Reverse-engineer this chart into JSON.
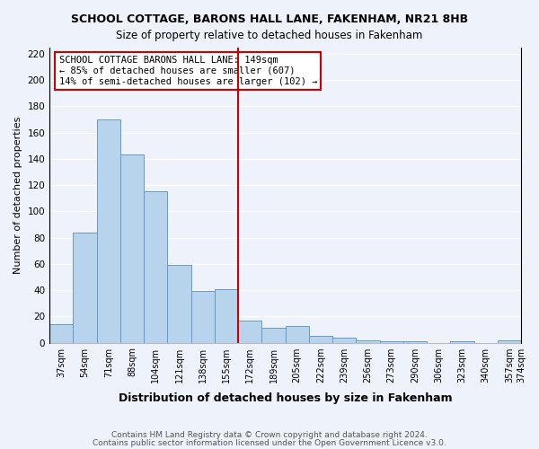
{
  "title": "SCHOOL COTTAGE, BARONS HALL LANE, FAKENHAM, NR21 8HB",
  "subtitle": "Size of property relative to detached houses in Fakenham",
  "xlabel": "Distribution of detached houses by size in Fakenham",
  "ylabel": "Number of detached properties",
  "bar_values": [
    14,
    84,
    170,
    143,
    115,
    59,
    39,
    41,
    17,
    11,
    13,
    5,
    4,
    2,
    1,
    1,
    0,
    1,
    0,
    2
  ],
  "bar_labels": [
    "37sqm",
    "54sqm",
    "71sqm",
    "88sqm",
    "104sqm",
    "121sqm",
    "138sqm",
    "155sqm",
    "172sqm",
    "189sqm",
    "205sqm",
    "222sqm",
    "239sqm",
    "256sqm",
    "273sqm",
    "290sqm",
    "306sqm",
    "323sqm",
    "340sqm",
    "357sqm",
    "374sqm"
  ],
  "bar_color": "#b8d4ec",
  "bar_edge_color": "#6699cc",
  "vline_x": 7.5,
  "vline_color": "#cc0000",
  "ylim": [
    0,
    225
  ],
  "yticks": [
    0,
    20,
    40,
    60,
    80,
    100,
    120,
    140,
    160,
    180,
    200,
    220
  ],
  "annotation_title": "SCHOOL COTTAGE BARONS HALL LANE: 149sqm",
  "annotation_line1": "← 85% of detached houses are smaller (607)",
  "annotation_line2": "14% of semi-detached houses are larger (102) →",
  "annotation_box_color": "#ffffff",
  "annotation_box_edge": "#cc0000",
  "footer1": "Contains HM Land Registry data © Crown copyright and database right 2024.",
  "footer2": "Contains public sector information licensed under the Open Government Licence v3.0.",
  "bg_color": "#eef2fb",
  "grid_color": "#ffffff"
}
